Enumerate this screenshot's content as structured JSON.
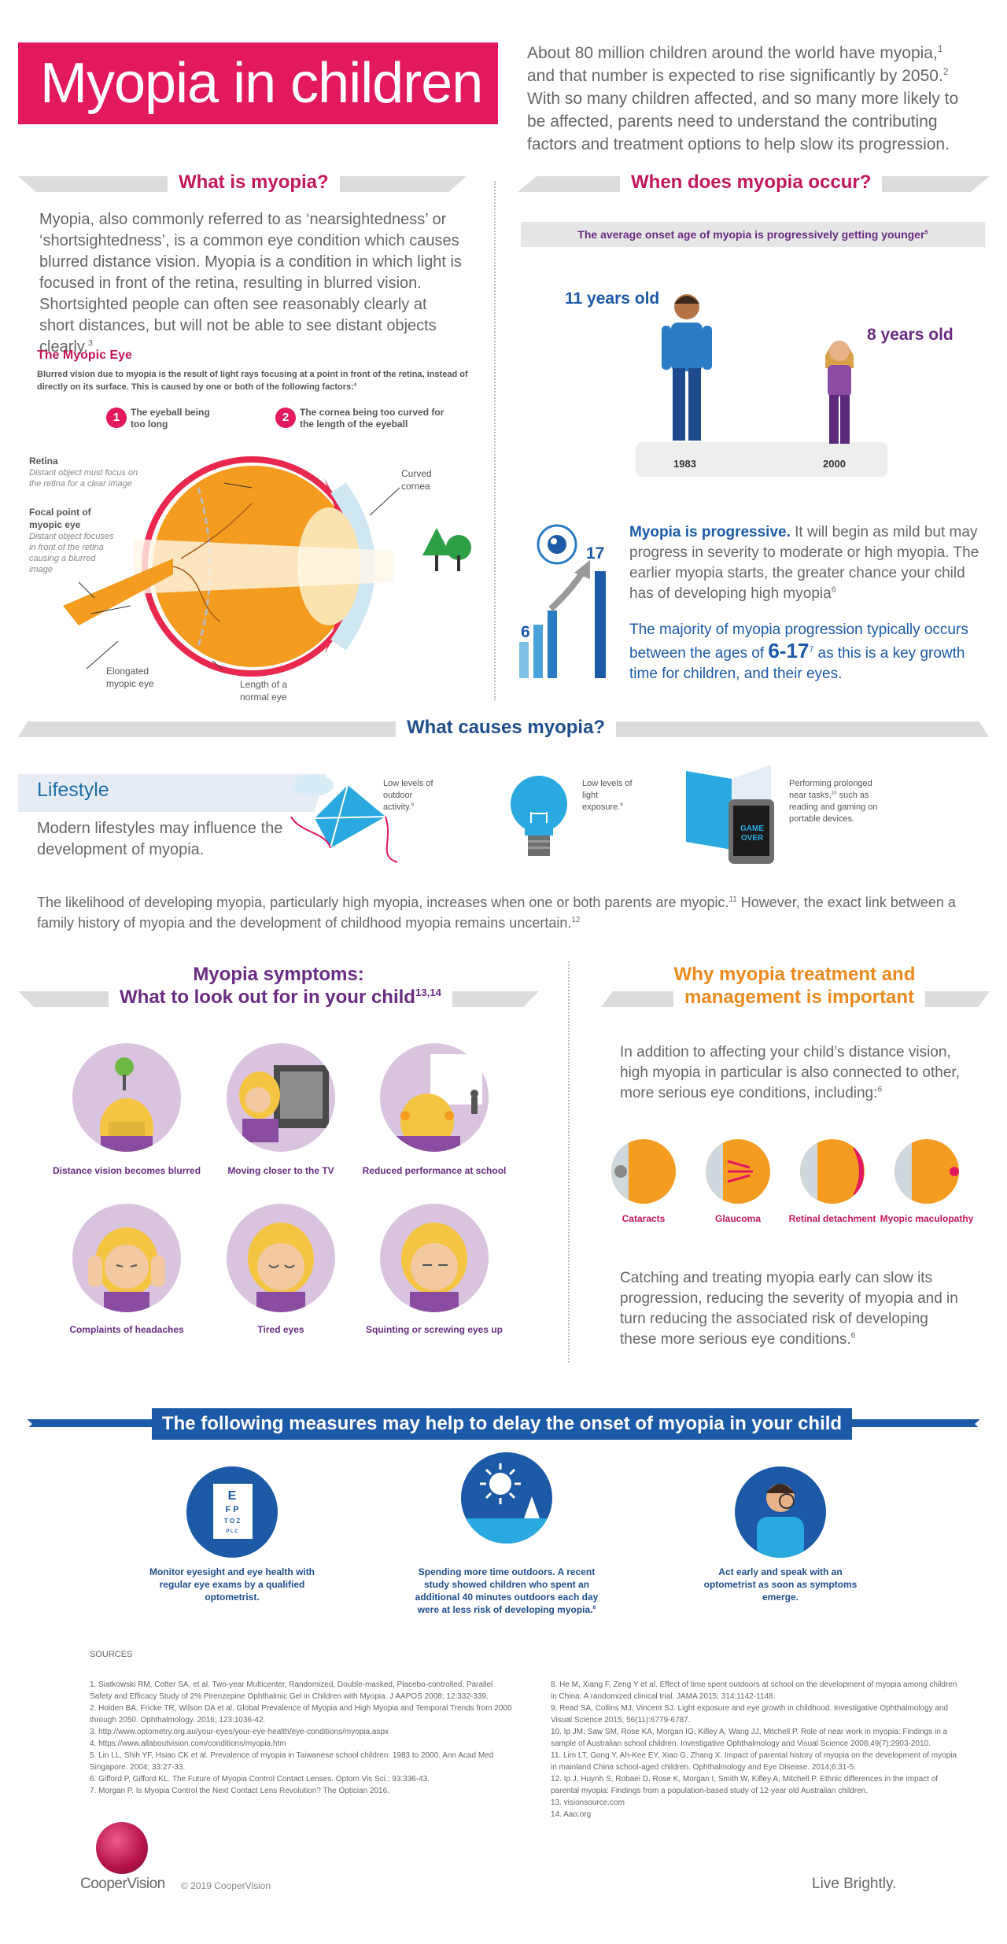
{
  "header": {
    "title": "Myopia in children",
    "intro": [
      "About 80 million children around the world have myopia,",
      "1",
      " and that number is expected to rise significantly by 2050.",
      "2",
      " With so many children affected, and so many more likely to be affected, parents need to understand the contributing factors and treatment options to help slow its progression."
    ]
  },
  "what_is": {
    "heading": "What is myopia?",
    "paragraph": "Myopia, also commonly referred to as ‘nearsightedness’ or ‘shortsightedness’, is a common eye condition which causes blurred distance vision. Myopia is a condition in which light is focused in front of the retina, resulting in blurred vision. Shortsighted people can often see reasonably clearly at short distances, but will not be able to see distant objects clearly.",
    "paragraph_ref": "3",
    "myopic_eye_heading": "The Myopic Eye",
    "myopic_eye_text": "Blurred vision due to myopia is the result of light rays focusing at a point in front of the retina, instead of directly on its surface. This is caused by one or both of the following factors:",
    "myopic_eye_ref": "4",
    "factor1_num": "1",
    "factor1": "The eyeball being too long",
    "factor2_num": "2",
    "factor2": "The cornea being too curved for the length of the eyeball",
    "labels": {
      "retina": "Retina",
      "retina_note": "Distant object must focus on the retina for a clear image",
      "focal": "Focal point of myopic eye",
      "focal_note": "Distant object focuses in front of the retina causing a blurred image",
      "curved_cornea": "Curved cornea",
      "elongated": "Elongated myopic eye",
      "normal_length": "Length of a normal eye"
    }
  },
  "when": {
    "heading": "When does myopia occur?",
    "subheading": "The average onset age of myopia is progressively getting younger",
    "subheading_ref": "5",
    "age_1983": "11 years old",
    "age_2000": "8 years old",
    "year_1983": "1983",
    "year_2000": "2000",
    "chart_low": "6",
    "chart_high": "17",
    "progressive_bold": "Myopia is progressive.",
    "progressive_text": " It will begin as mild but may progress in severity to moderate or high myopia. The earlier myopia starts, the greater chance your child has of developing high myopia",
    "progressive_ref": "6",
    "majority_text_1": "The majority of myopia progression typically occurs between the ages of ",
    "majority_range": "6-17",
    "majority_ref": "7",
    "majority_text_2": " as this is a key growth time for children, and their eyes."
  },
  "causes": {
    "heading": "What causes myopia?",
    "lifestyle_title": "Lifestyle",
    "lifestyle_text": "Modern lifestyles may influence the development of myopia.",
    "outdoor": "Low levels of outdoor activity.",
    "outdoor_ref": "8",
    "light": "Low levels of light exposure.",
    "light_ref": "9",
    "near": "Performing prolonged near tasks,",
    "near_ref": "10",
    "near_2": " such as reading and gaming on portable devices.",
    "game_screen": "GAME OVER",
    "family": "The likelihood of developing myopia, particularly high myopia, increases when one or both parents are myopic.",
    "family_ref1": "11",
    "family_2": " However, the exact link between a family history of myopia and the development of childhood myopia remains uncertain.",
    "family_ref2": "12"
  },
  "symptoms": {
    "heading_1": "Myopia symptoms:",
    "heading_2": "What to look out for in your child",
    "heading_ref": "13,14",
    "items": [
      {
        "label": "Distance vision becomes blurred"
      },
      {
        "label": "Moving closer to the TV"
      },
      {
        "label": "Reduced performance at school"
      },
      {
        "label": "Complaints of headaches"
      },
      {
        "label": "Tired eyes"
      },
      {
        "label": "Squinting or screwing eyes up"
      }
    ]
  },
  "why": {
    "heading_1": "Why myopia treatment and",
    "heading_2": "management is important",
    "intro": "In addition to affecting your child’s distance vision, high myopia in particular is also connected to other, more serious eye conditions, including:",
    "intro_ref": "6",
    "conditions": [
      {
        "label": "Cataracts"
      },
      {
        "label": "Glaucoma"
      },
      {
        "label": "Retinal detachment"
      },
      {
        "label": "Myopic maculopathy"
      }
    ],
    "closing": "Catching and treating myopia early can slow its progression, reducing the severity of myopia and in turn reducing the associated risk of developing these more serious eye conditions.",
    "closing_ref": "6"
  },
  "measures": {
    "heading": "The following measures may help to delay the onset of myopia in your child",
    "chart_letters": [
      "E",
      "F P",
      "T O Z",
      "P L C"
    ],
    "items": [
      {
        "label": "Monitor eyesight and eye health with regular eye exams by a qualified optometrist."
      },
      {
        "label": "Spending more time outdoors. A recent study showed children who spent an additional 40 minutes outdoors each day were at less risk of developing myopia.",
        "ref": "8"
      },
      {
        "label": "Act early and speak with an optometrist as soon as symptoms emerge."
      }
    ]
  },
  "sources": {
    "heading": "SOURCES",
    "left": [
      "1. Siatkowski RM, Cotter SA, et al. Two-year Multicenter, Randomized, Double-masked, Placebo-controlled, Parallel Safety and Efficacy Study of 2% Pirenzepine Ophthalmic Gel in Children with Myopia. J AAPOS 2008; 12:332-339.",
      "2. Holden BA, Fricke TR, Wilson DA et al. Global Prevalence of Myopia and High Myopia and Temporal Trends from 2000 through 2050. Ophthalmology. 2016; 123:1036-42.",
      "3. http://www.optometry.org.au/your-eyes/your-eye-health/eye-conditions/myopia.aspx",
      "4. https://www.allaboutvision.com/conditions/myopia.htm",
      "5. Lin LL, Shih YF, Hsiao CK et al. Prevalence of myopia in Taiwanese school children: 1983 to 2000. Ann Acad Med Singapore. 2004; 33:27-33.",
      "6. Gifford P, Gifford KL. The Future of Myopia Control Contact Lenses. Optom Vis Sci.; 93:336-43.",
      "7. Morgan P. Is Myopia Control the Next Contact Lens Revolution? The Optician 2016."
    ],
    "right": [
      "8. He M, Xiang F, Zeng Y et al. Effect of time spent outdoors at school on the development of myopia among children in China: A randomized clinical trial. JAMA 2015; 314:1142-1148.",
      "9. Read SA, Collins MJ, Vincent SJ. Light exposure and eye growth in childhood. Investigative Ophthalmology and Visual Science 2015; 56(11):6779-6787.",
      "10. Ip JM, Saw SM, Rose KA, Morgan IG, Kifley A, Wang JJ, Mitchell P. Role of near work in myopia: Findings in a sample of Australian school children. Investigative Ophthalmology and Visual Science 2008;49(7):2903-2010.",
      "11. Lim LT, Gong Y, Ah-Kee EY, Xiao G, Zhang X. Impact of parental history of myopia on the development of myopia in mainland China school-aged children. Ophthalmology and Eye Disease. 2014;6:31-5.",
      "12. Ip J, Huynh S, Robaei D, Rose K, Morgan I, Smith W, Kifley A, Mitchell P. Ethnic differences in the impact of parental myopia: Findings from a population-based study of 12-year old Australian children.",
      "13. visionsource.com",
      "14. Aao.org"
    ]
  },
  "footer": {
    "brand": "CooperVision",
    "copyright": "© 2019 CooperVision",
    "tagline": "Live Brightly."
  },
  "colors": {
    "pink": "#e3195e",
    "purple": "#6a2c82",
    "navy": "#1c5aa8",
    "orange": "#f39c1f",
    "grey": "#dcdcdc"
  }
}
